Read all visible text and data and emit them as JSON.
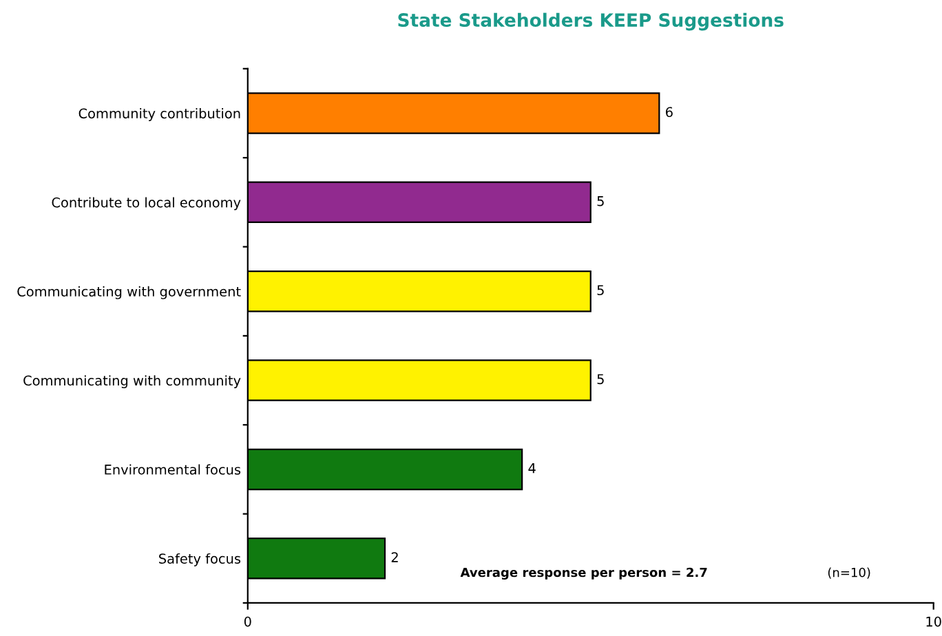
{
  "chart_data": {
    "type": "bar",
    "orientation": "horizontal",
    "title": "State Stakeholders KEEP Suggestions",
    "categories": [
      "Community contribution",
      "Contribute to local economy",
      "Communicating with government",
      "Communicating with community",
      "Environmental focus",
      "Safety focus"
    ],
    "values": [
      6,
      5,
      5,
      5,
      4,
      2
    ],
    "colors": [
      "#ff7f00",
      "#912a8f",
      "#fff200",
      "#fff200",
      "#107a10",
      "#107a10"
    ],
    "xlim": [
      0,
      10
    ],
    "xticks": [
      0,
      10
    ],
    "data_labels": true,
    "grid": false,
    "legend": false,
    "annotations": [
      "Average response per person = 2.7",
      "(n=10)"
    ]
  }
}
